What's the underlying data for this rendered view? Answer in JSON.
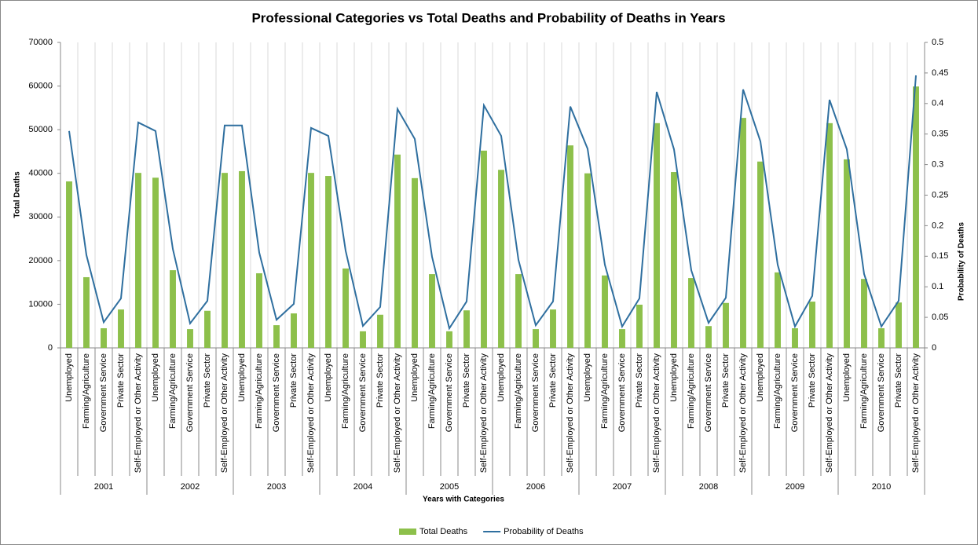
{
  "chart_data": {
    "type": "bar-line",
    "title": "Professional Categories vs Total Deaths and Probability of Deaths in Years",
    "x_label": "Years with Categories",
    "y_label": "Total Deaths",
    "y2_label": "Probability of Deaths",
    "categories": [
      "Unemployed",
      "Farming/Agriculture",
      "Government Service",
      "Private Sector",
      "Self-Employed or Other Activity",
      "Unemployed",
      "Farming/Agriculture",
      "Government Service",
      "Private Sector",
      "Self-Employed or Other Activity",
      "Unemployed",
      "Farming/Agriculture",
      "Government Service",
      "Private Sector",
      "Self-Employed or Other Activity",
      "Unemployed",
      "Farming/Agriculture",
      "Government Service",
      "Private Sector",
      "Self-Employed or Other Activity",
      "Unemployed",
      "Farming/Agriculture",
      "Government Service",
      "Private Sector",
      "Self-Employed or Other Activity",
      "Unemployed",
      "Farming/Agriculture",
      "Government Service",
      "Private Sector",
      "Self-Employed or Other Activity",
      "Unemployed",
      "Farming/Agriculture",
      "Government Service",
      "Private Sector",
      "Self-Employed or Other Activity",
      "Unemployed",
      "Farming/Agriculture",
      "Government Service",
      "Private Sector",
      "Self-Employed or Other Activity",
      "Unemployed",
      "Farming/Agriculture",
      "Government Service",
      "Private Sector",
      "Self-Employed or Other Activity",
      "Unemployed",
      "Farming/Agriculture",
      "Government Service",
      "Private Sector",
      "Self-Employed or Other Activity"
    ],
    "groups": [
      "2001",
      "2002",
      "2003",
      "2004",
      "2005",
      "2006",
      "2007",
      "2008",
      "2009",
      "2010"
    ],
    "series": [
      {
        "name": "Total Deaths",
        "type": "bar",
        "color": "#8dc04b",
        "values": [
          38150,
          16200,
          4500,
          8800,
          40100,
          39000,
          17800,
          4300,
          8500,
          40100,
          40500,
          17100,
          5200,
          7900,
          40100,
          39400,
          18200,
          3800,
          7600,
          44300,
          38900,
          16900,
          3800,
          8600,
          45200,
          40800,
          16900,
          4300,
          8800,
          46400,
          40000,
          16600,
          4300,
          9900,
          51500,
          40300,
          16000,
          5000,
          10300,
          52700,
          42700,
          17300,
          4500,
          10600,
          51500,
          43200,
          15800,
          4500,
          10400,
          59900
        ]
      },
      {
        "name": "Probability of Deaths",
        "type": "line",
        "axis": "y2",
        "color": "#2f6f9f",
        "values": [
          0.355,
          0.152,
          0.042,
          0.081,
          0.369,
          0.355,
          0.162,
          0.04,
          0.077,
          0.364,
          0.364,
          0.156,
          0.046,
          0.072,
          0.36,
          0.347,
          0.159,
          0.036,
          0.067,
          0.391,
          0.342,
          0.149,
          0.032,
          0.076,
          0.397,
          0.347,
          0.144,
          0.037,
          0.076,
          0.395,
          0.326,
          0.136,
          0.035,
          0.081,
          0.419,
          0.325,
          0.127,
          0.041,
          0.082,
          0.423,
          0.338,
          0.136,
          0.035,
          0.085,
          0.406,
          0.325,
          0.121,
          0.035,
          0.077,
          0.446
        ]
      }
    ],
    "ylim": [
      0,
      70000
    ],
    "yticks": [
      0,
      10000,
      20000,
      30000,
      40000,
      50000,
      60000,
      70000
    ],
    "y2lim": [
      0,
      0.5
    ],
    "y2ticks": [
      0,
      0.05,
      0.1,
      0.15,
      0.2,
      0.25,
      0.3,
      0.35,
      0.4,
      0.45,
      0.5
    ],
    "grid": "vertical",
    "legend": "bottom"
  }
}
